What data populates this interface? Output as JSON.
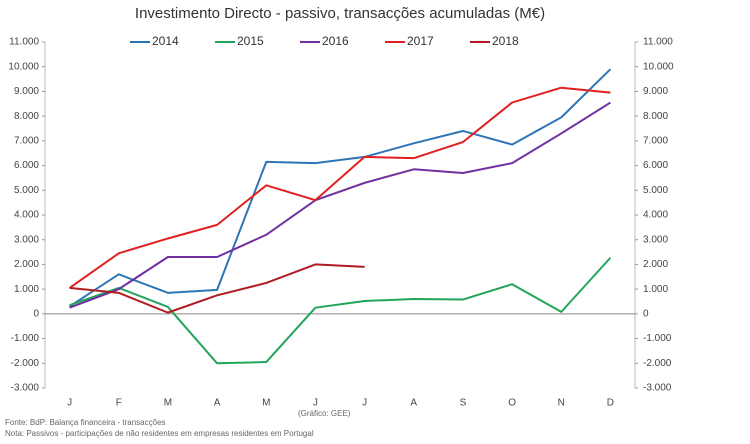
{
  "chart_data": {
    "type": "line",
    "title": "Investimento Directo - passivo, transacções acumuladas (M€)",
    "categories": [
      "J",
      "F",
      "M",
      "A",
      "M",
      "J",
      "J",
      "A",
      "S",
      "O",
      "N",
      "D"
    ],
    "series": [
      {
        "name": "2014",
        "color": "#2e75b6",
        "values": [
          300,
          1600,
          850,
          970,
          6150,
          6100,
          6350,
          6900,
          7400,
          6850,
          7950,
          9900
        ]
      },
      {
        "name": "2015",
        "color": "#22a55a",
        "values": [
          350,
          1050,
          280,
          -2000,
          -1950,
          250,
          520,
          600,
          580,
          1200,
          80,
          2270
        ]
      },
      {
        "name": "2016",
        "color": "#7030a0",
        "values": [
          250,
          1000,
          2300,
          2300,
          3200,
          4600,
          5300,
          5850,
          5700,
          6100,
          7300,
          8550
        ]
      },
      {
        "name": "2017",
        "color": "#e02020",
        "values": [
          1050,
          2450,
          3050,
          3600,
          5200,
          4600,
          6350,
          6300,
          6950,
          8550,
          9150,
          8950
        ]
      },
      {
        "name": "2018",
        "color": "#b01c22",
        "values": [
          1050,
          850,
          50,
          750,
          1250,
          2000,
          1900,
          null,
          null,
          null,
          null,
          null
        ]
      }
    ],
    "ylim": [
      -3000,
      11000
    ],
    "yticks": [
      {
        "value": -3000,
        "label": "-3.000"
      },
      {
        "value": -2000,
        "label": "-2.000"
      },
      {
        "value": -1000,
        "label": "-1.000"
      },
      0,
      {
        "value": 1000,
        "label": "1.000"
      },
      {
        "value": 2000,
        "label": "2.000"
      },
      {
        "value": 3000,
        "label": "3.000"
      },
      {
        "value": 4000,
        "label": "4.000"
      },
      {
        "value": 5000,
        "label": "5.000"
      },
      {
        "value": 6000,
        "label": "6.000"
      },
      {
        "value": 7000,
        "label": "7.000"
      },
      {
        "value": 8000,
        "label": "8.000"
      },
      {
        "value": 9000,
        "label": "9.000"
      },
      {
        "value": 10000,
        "label": "10.000"
      },
      {
        "value": 11000,
        "label": "11.000"
      }
    ],
    "y2lim": [
      -3000,
      11000
    ],
    "y2ticks": [
      {
        "value": -3000,
        "label": "-3.000"
      },
      {
        "value": -2000,
        "label": "-2.000"
      },
      {
        "value": -1000,
        "label": "-1.000"
      },
      0,
      {
        "value": 1000,
        "label": "1.000"
      },
      {
        "value": 2000,
        "label": "2.000"
      },
      {
        "value": 3000,
        "label": "3.000"
      },
      {
        "value": 4000,
        "label": "4.000"
      },
      {
        "value": 5000,
        "label": "5.000"
      },
      {
        "value": 6000,
        "label": "6.000"
      },
      {
        "value": 7000,
        "label": "7.000"
      },
      {
        "value": 8000,
        "label": "8.000"
      },
      {
        "value": 9000,
        "label": "9.000"
      },
      {
        "value": 10000,
        "label": "10.000"
      },
      {
        "value": 11000,
        "label": "11.000"
      }
    ],
    "grid": false,
    "legend": "top",
    "annotations": [
      "(Gráfico: GEE)",
      "Fonte: BdP: Balança financeira - transacções",
      "Nota: Passivos - participações de não residentes em empresas residentes em Portugal"
    ]
  }
}
